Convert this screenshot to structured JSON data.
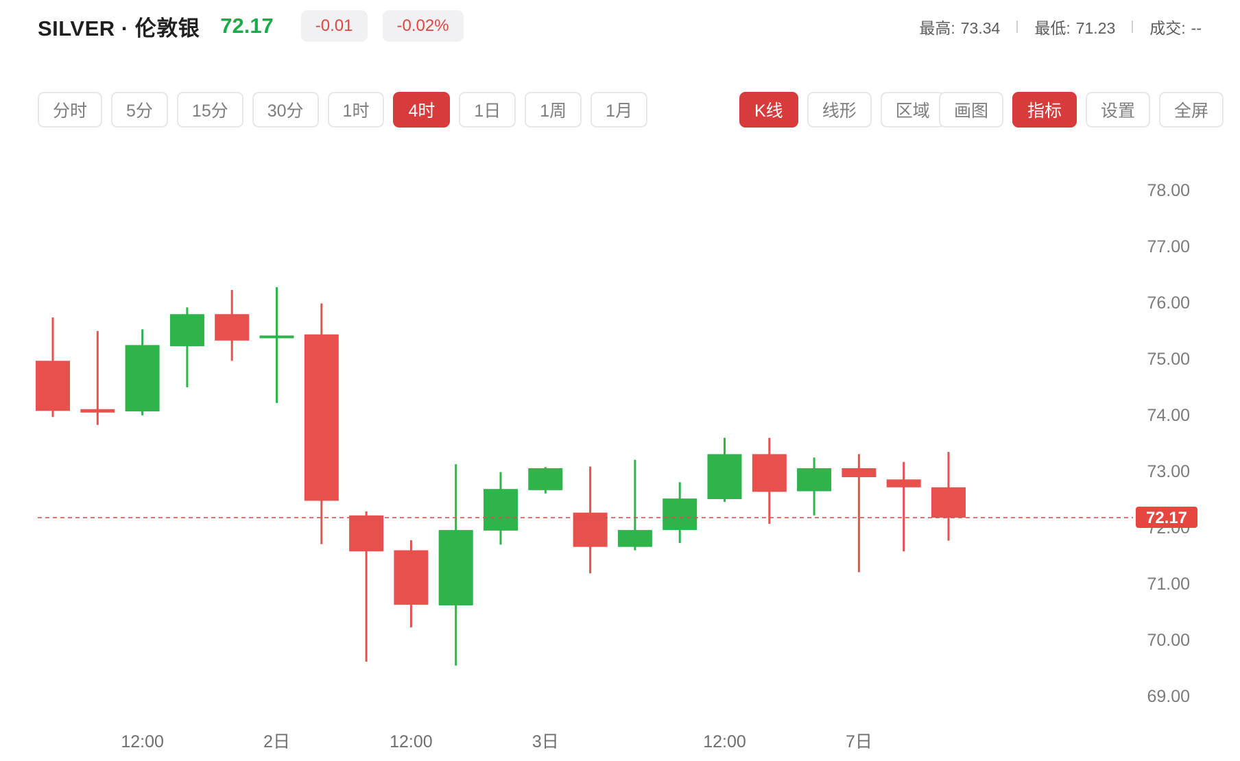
{
  "header": {
    "symbol": "SILVER · 伦敦银",
    "price": "72.17",
    "change": "-0.01",
    "change_pct": "-0.02%",
    "stats": [
      {
        "label": "最高:",
        "value": "73.34"
      },
      {
        "label": "最低:",
        "value": "71.23"
      },
      {
        "label": "成交:",
        "value": "--"
      }
    ]
  },
  "toolbar": {
    "timeframes": [
      {
        "label": "分时",
        "active": false
      },
      {
        "label": "5分",
        "active": false
      },
      {
        "label": "15分",
        "active": false
      },
      {
        "label": "30分",
        "active": false
      },
      {
        "label": "1时",
        "active": false
      },
      {
        "label": "4时",
        "active": true
      },
      {
        "label": "1日",
        "active": false
      },
      {
        "label": "1周",
        "active": false
      },
      {
        "label": "1月",
        "active": false
      }
    ],
    "chart_types": [
      {
        "label": "K线",
        "active": true
      },
      {
        "label": "线形",
        "active": false
      },
      {
        "label": "区域",
        "active": false
      }
    ],
    "tools": [
      {
        "label": "画图",
        "active": false
      },
      {
        "label": "指标",
        "active": true
      },
      {
        "label": "设置",
        "active": false
      },
      {
        "label": "全屏",
        "active": false
      }
    ]
  },
  "chart_data": {
    "type": "candlestick",
    "timeframe": "4时",
    "current_price": 72.17,
    "current_price_label": "72.17",
    "up_color": "#2eb44a",
    "down_color": "#e8504e",
    "dashed_line_color": "#cc584e",
    "ylim": [
      68.6,
      78.6
    ],
    "grid": false,
    "y_axis_labels": [
      "78.00",
      "77.00",
      "76.00",
      "75.00",
      "74.00",
      "73.00",
      "72.00",
      "71.00",
      "70.00",
      "69.00"
    ],
    "x_axis_labels": [
      {
        "text": "12:00",
        "candle_index": 2
      },
      {
        "text": "2日",
        "candle_index": 5
      },
      {
        "text": "12:00",
        "candle_index": 8
      },
      {
        "text": "3日",
        "candle_index": 11
      },
      {
        "text": "12:00",
        "candle_index": 15
      },
      {
        "text": "7日",
        "candle_index": 18
      }
    ],
    "candles": [
      {
        "o": 74.96,
        "h": 75.73,
        "l": 73.96,
        "c": 74.07
      },
      {
        "o": 74.1,
        "h": 75.49,
        "l": 73.82,
        "c": 74.04
      },
      {
        "o": 74.06,
        "h": 75.52,
        "l": 73.99,
        "c": 75.24
      },
      {
        "o": 75.22,
        "h": 75.91,
        "l": 74.49,
        "c": 75.79
      },
      {
        "o": 75.79,
        "h": 76.22,
        "l": 74.96,
        "c": 75.32
      },
      {
        "o": 75.37,
        "h": 76.27,
        "l": 74.21,
        "c": 75.41
      },
      {
        "o": 75.43,
        "h": 75.98,
        "l": 71.7,
        "c": 72.47
      },
      {
        "o": 72.21,
        "h": 72.28,
        "l": 69.61,
        "c": 71.57
      },
      {
        "o": 71.59,
        "h": 71.77,
        "l": 70.22,
        "c": 70.62
      },
      {
        "o": 70.61,
        "h": 73.12,
        "l": 69.54,
        "c": 71.95
      },
      {
        "o": 71.94,
        "h": 72.98,
        "l": 71.69,
        "c": 72.68
      },
      {
        "o": 72.66,
        "h": 73.07,
        "l": 72.6,
        "c": 73.05
      },
      {
        "o": 72.26,
        "h": 73.08,
        "l": 71.18,
        "c": 71.65
      },
      {
        "o": 71.65,
        "h": 73.2,
        "l": 71.59,
        "c": 71.95
      },
      {
        "o": 71.95,
        "h": 72.8,
        "l": 71.72,
        "c": 72.51
      },
      {
        "o": 72.5,
        "h": 73.59,
        "l": 72.45,
        "c": 73.3
      },
      {
        "o": 73.3,
        "h": 73.59,
        "l": 72.06,
        "c": 72.63
      },
      {
        "o": 72.64,
        "h": 73.24,
        "l": 72.21,
        "c": 73.05
      },
      {
        "o": 73.05,
        "h": 73.3,
        "l": 71.2,
        "c": 72.89
      },
      {
        "o": 72.85,
        "h": 73.16,
        "l": 71.57,
        "c": 72.71
      },
      {
        "o": 72.71,
        "h": 73.34,
        "l": 71.76,
        "c": 72.17
      }
    ]
  }
}
